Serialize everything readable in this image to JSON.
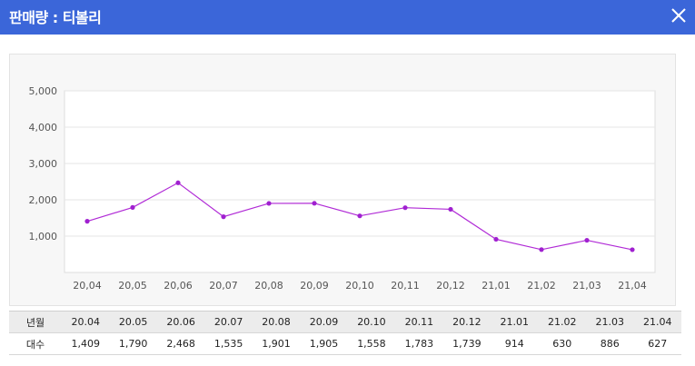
{
  "window": {
    "title": "판매량 : 티볼리",
    "close_icon": "close-icon"
  },
  "chart_data": {
    "type": "line",
    "title": "",
    "xlabel": "",
    "ylabel": "",
    "categories": [
      "20,04",
      "20,05",
      "20,06",
      "20,07",
      "20,08",
      "20,09",
      "20,10",
      "20,11",
      "20,12",
      "21,01",
      "21,02",
      "21,03",
      "21,04"
    ],
    "values": [
      1409,
      1790,
      2468,
      1535,
      1901,
      1905,
      1558,
      1783,
      1739,
      914,
      630,
      886,
      627
    ],
    "ylim": [
      0,
      5000
    ],
    "yticks": [
      1000,
      2000,
      3000,
      4000,
      5000
    ],
    "ytick_labels": [
      "1,000",
      "2,000",
      "3,000",
      "4,000",
      "5,000"
    ],
    "grid": true,
    "legend": "none",
    "line_color": "#b02ad6",
    "marker_color": "#a020d0"
  },
  "table": {
    "header_label": "년월",
    "row_label": "대수",
    "columns": [
      "20.04",
      "20.05",
      "20.06",
      "20.07",
      "20.08",
      "20.09",
      "20.10",
      "20.11",
      "20.12",
      "21.01",
      "21.02",
      "21.03",
      "21.04"
    ],
    "values": [
      "1,409",
      "1,790",
      "2,468",
      "1,535",
      "1,901",
      "1,905",
      "1,558",
      "1,783",
      "1,739",
      "914",
      "630",
      "886",
      "627"
    ]
  },
  "colors": {
    "titlebar": "#3b66d9",
    "chart_background": "#f7f7f7",
    "plot_background": "#ffffff",
    "table_header": "#ececec"
  }
}
